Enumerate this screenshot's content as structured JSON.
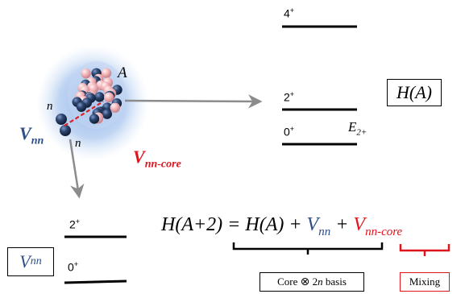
{
  "nucleus": {
    "core_label": "A",
    "neutron_label_1": "n",
    "neutron_label_2": "n",
    "vnn_main": "V",
    "vnn_sub": "nn",
    "vcore_main": "V",
    "vcore_sub": "nn-core",
    "colors": {
      "halo": "#a9c6ee",
      "core_blue": "#253a5e",
      "core_pink": "#f0b2b6",
      "interaction_line": "#e02020",
      "arrow": "#8c8c8c"
    }
  },
  "spectrum_A": {
    "level_4": "4",
    "level_4_sup": "+",
    "level_2": "2",
    "level_2_sup": "+",
    "level_0": "0",
    "level_0_sup": "+",
    "energy_main": "E",
    "energy_sub": "2+",
    "hamiltonian": "H(A)"
  },
  "spectrum_A2": {
    "level_2": "2",
    "level_2_sup": "+",
    "level_0": "0",
    "level_0_sup": "+",
    "box_main": "V",
    "box_sub": "nn"
  },
  "equation": {
    "lhs": "H(A+2) = H(A) + ",
    "vnn_main": "V",
    "vnn_sub": "nn",
    "plus": " + ",
    "vcore_main": "V",
    "vcore_sub": "nn-core",
    "colors": {
      "vnn": "#2e4f86",
      "vcore": "#e0141c"
    }
  },
  "annotations": {
    "basis_pre": "Core ",
    "basis_otimes": "⊗",
    "basis_post": " 2",
    "basis_n": "n",
    "basis_end": " basis",
    "mixing": "Mixing"
  }
}
